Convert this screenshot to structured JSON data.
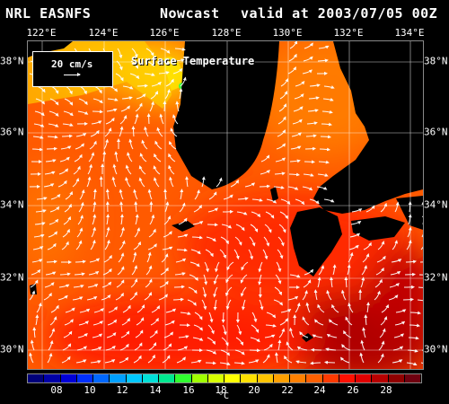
{
  "header": {
    "left": "NRL EASNFS",
    "middle": "Nowcast",
    "right": "valid at 2003/07/05 00Z"
  },
  "map": {
    "title": "Surface Temperature",
    "legend_label": "20 cm/s",
    "lon_labels": [
      "122°E",
      "124°E",
      "126°E",
      "128°E",
      "130°E",
      "132°E",
      "134°E"
    ],
    "lat_labels": [
      "38°N",
      "36°N",
      "34°N",
      "32°N",
      "30°N"
    ],
    "land_color": "#000000",
    "vector_color": "#ffffff"
  },
  "colorbar": {
    "unit": "°C",
    "ticks": [
      "08",
      "10",
      "12",
      "14",
      "16",
      "18",
      "20",
      "22",
      "24",
      "26",
      "28"
    ],
    "colors": [
      "#00007a",
      "#0000a8",
      "#0000d8",
      "#0030ff",
      "#0068ff",
      "#00a0ff",
      "#00c8ff",
      "#00e0d8",
      "#00e890",
      "#30ff30",
      "#a0ff00",
      "#d8ff00",
      "#ffff00",
      "#ffe000",
      "#ffc400",
      "#ffa000",
      "#ff8000",
      "#ff6000",
      "#ff3a00",
      "#ff1000",
      "#e00000",
      "#b80000",
      "#900000",
      "#700010"
    ]
  }
}
